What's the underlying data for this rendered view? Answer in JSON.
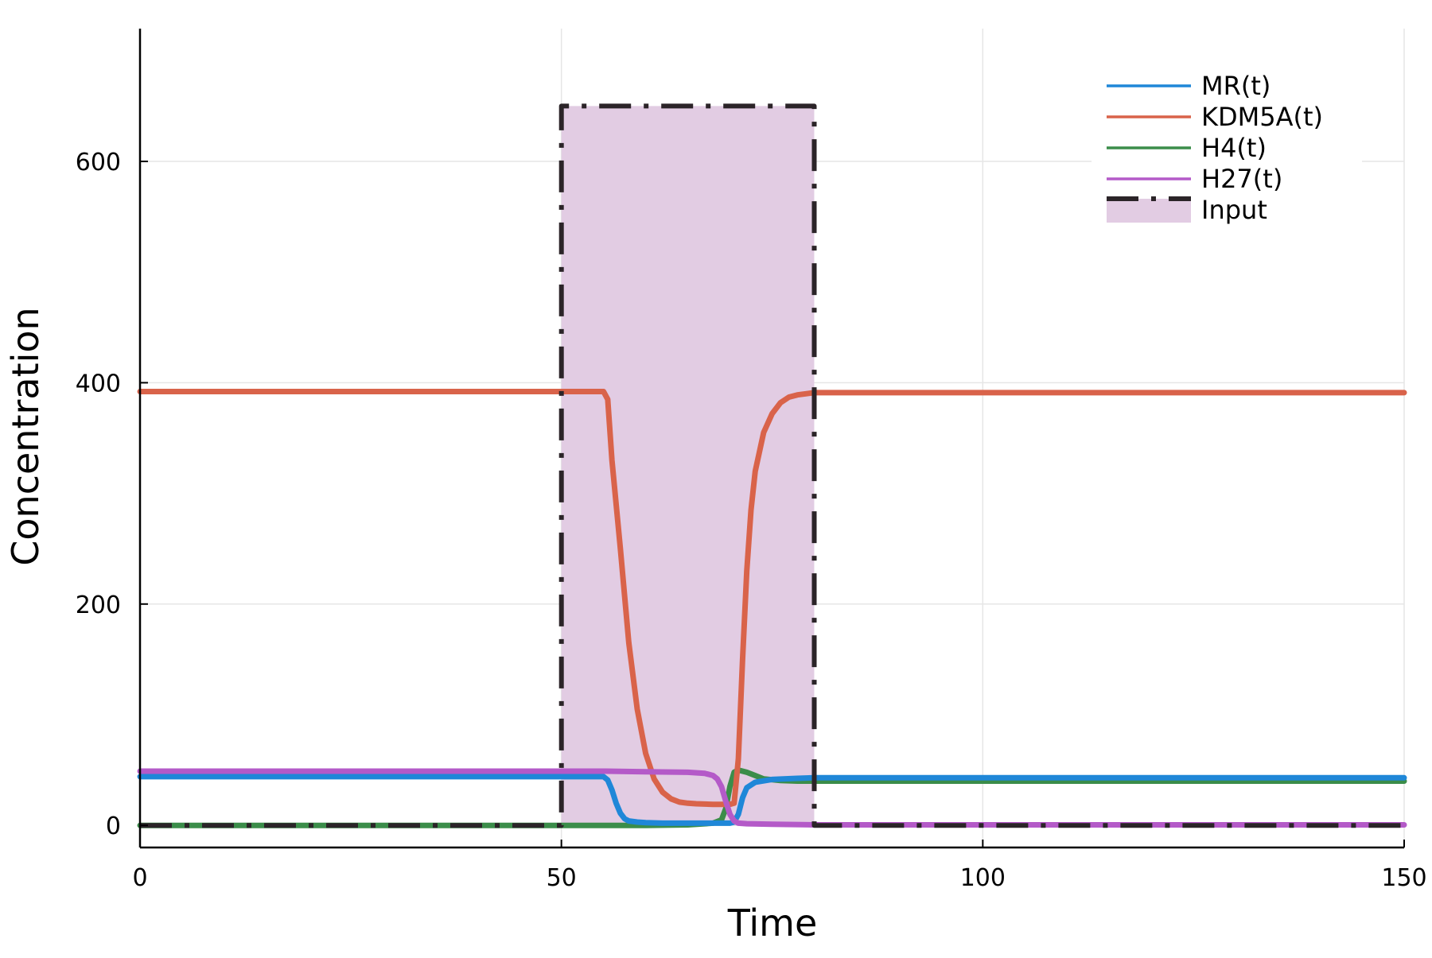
{
  "chart_data": {
    "type": "line",
    "title": "",
    "xlabel": "Time",
    "ylabel": "Concentration",
    "xlim": [
      0,
      150
    ],
    "ylim": [
      -20,
      720
    ],
    "xticks": [
      0,
      50,
      100,
      150
    ],
    "xtick_labels": [
      "0",
      "50",
      "100",
      "150"
    ],
    "yticks": [
      0,
      200,
      400,
      600
    ],
    "ytick_labels": [
      "0",
      "200",
      "400",
      "600"
    ],
    "grid": true,
    "legend_position": "top-right",
    "series": [
      {
        "name": "MR(t)",
        "color": "#1f87d8",
        "x": [
          0,
          50,
          55,
          55.5,
          56,
          56.5,
          57,
          57.5,
          58,
          59,
          60,
          62,
          65,
          68,
          70,
          70.5,
          71,
          71.5,
          72,
          73,
          75,
          78,
          80,
          150
        ],
        "y": [
          44,
          44,
          44,
          41,
          32,
          20,
          11,
          6,
          4,
          3,
          2.5,
          2,
          2,
          2,
          2,
          3,
          10,
          25,
          34,
          39,
          41.5,
          42.5,
          43,
          43
        ]
      },
      {
        "name": "KDM5A(t)",
        "color": "#d9634a",
        "x": [
          0,
          50,
          55,
          55.5,
          56,
          57,
          58,
          59,
          60,
          61,
          62,
          63,
          64,
          65,
          66,
          68,
          70,
          70.5,
          71,
          71.5,
          72,
          72.5,
          73,
          74,
          75,
          76,
          77,
          78,
          79,
          80,
          150
        ],
        "y": [
          392,
          392,
          392,
          385,
          330,
          250,
          165,
          105,
          65,
          42,
          30,
          24,
          21,
          20,
          19.5,
          19,
          19,
          20,
          60,
          150,
          230,
          285,
          320,
          355,
          372,
          382,
          387,
          389,
          390,
          391,
          391
        ]
      },
      {
        "name": "H4(t)",
        "color": "#3b8d4a",
        "x": [
          0,
          50,
          60,
          65,
          68,
          69,
          69.5,
          70,
          70.5,
          71,
          72,
          73,
          74,
          76,
          78,
          80,
          150
        ],
        "y": [
          0,
          0,
          0,
          0.5,
          2,
          5,
          15,
          35,
          48,
          50,
          48,
          45,
          42,
          40.5,
          40,
          40,
          40
        ]
      },
      {
        "name": "H27(t)",
        "color": "#b45ac8",
        "x": [
          0,
          50,
          55,
          60,
          65,
          67,
          68,
          68.5,
          69,
          69.5,
          70,
          70.5,
          71,
          72,
          75,
          80,
          150
        ],
        "y": [
          49,
          49,
          49,
          48.5,
          48,
          47,
          45,
          42,
          35,
          22,
          10,
          4,
          2,
          1.5,
          1,
          0.5,
          0.5
        ]
      },
      {
        "name": "Input",
        "color": "#2b2428",
        "fill": "#e2cce3",
        "x": [
          0,
          50,
          50,
          80,
          80,
          150
        ],
        "y": [
          0,
          0,
          650,
          650,
          0,
          0
        ]
      }
    ]
  }
}
